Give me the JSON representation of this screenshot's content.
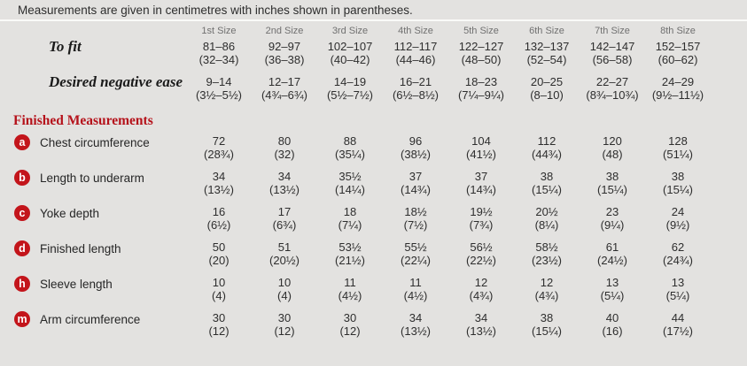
{
  "note": "Measurements are given in centimetres with inches shown in parentheses.",
  "colors": {
    "background": "#e3e2e0",
    "badge_red": "#c3151b",
    "section_title_red": "#b5121b",
    "header_gray": "#707070",
    "text": "#2e2e2e",
    "divider": "#fafaf8"
  },
  "table": {
    "size_headers": [
      "1st Size",
      "2nd Size",
      "3rd Size",
      "4th Size",
      "5th Size",
      "6th Size",
      "7th Size",
      "8th Size"
    ],
    "fit_rows": [
      {
        "label": "To fit",
        "cm": [
          "81–86",
          "92–97",
          "102–107",
          "112–117",
          "122–127",
          "132–137",
          "142–147",
          "152–157"
        ],
        "in": [
          "(32–34)",
          "(36–38)",
          "(40–42)",
          "(44–46)",
          "(48–50)",
          "(52–54)",
          "(56–58)",
          "(60–62)"
        ]
      },
      {
        "label": "Desired negative ease",
        "cm": [
          "9–14",
          "12–17",
          "14–19",
          "16–21",
          "18–23",
          "20–25",
          "22–27",
          "24–29"
        ],
        "in": [
          "(3½–5½)",
          "(4¾–6¾)",
          "(5½–7½)",
          "(6½–8½)",
          "(7¼–9¼)",
          "(8–10)",
          "(8¾–10¾)",
          "(9½–11½)"
        ]
      }
    ],
    "section_title": "Finished Measurements",
    "measurement_rows": [
      {
        "key": "a",
        "label": "Chest circumference",
        "cm": [
          "72",
          "80",
          "88",
          "96",
          "104",
          "112",
          "120",
          "128"
        ],
        "in": [
          "(28¾)",
          "(32)",
          "(35¼)",
          "(38½)",
          "(41½)",
          "(44¾)",
          "(48)",
          "(51¼)"
        ]
      },
      {
        "key": "b",
        "label": "Length to underarm",
        "cm": [
          "34",
          "34",
          "35½",
          "37",
          "37",
          "38",
          "38",
          "38"
        ],
        "in": [
          "(13½)",
          "(13½)",
          "(14¼)",
          "(14¾)",
          "(14¾)",
          "(15¼)",
          "(15¼)",
          "(15¼)"
        ]
      },
      {
        "key": "c",
        "label": "Yoke depth",
        "cm": [
          "16",
          "17",
          "18",
          "18½",
          "19½",
          "20½",
          "23",
          "24"
        ],
        "in": [
          "(6½)",
          "(6¾)",
          "(7¼)",
          "(7½)",
          "(7¾)",
          "(8¼)",
          "(9¼)",
          "(9½)"
        ]
      },
      {
        "key": "d",
        "label": "Finished length",
        "cm": [
          "50",
          "51",
          "53½",
          "55½",
          "56½",
          "58½",
          "61",
          "62"
        ],
        "in": [
          "(20)",
          "(20½)",
          "(21½)",
          "(22¼)",
          "(22½)",
          "(23½)",
          "(24½)",
          "(24¾)"
        ]
      },
      {
        "key": "h",
        "label": "Sleeve length",
        "cm": [
          "10",
          "10",
          "11",
          "11",
          "12",
          "12",
          "13",
          "13"
        ],
        "in": [
          "(4)",
          "(4)",
          "(4½)",
          "(4½)",
          "(4¾)",
          "(4¾)",
          "(5¼)",
          "(5¼)"
        ]
      },
      {
        "key": "m",
        "label": "Arm circumference",
        "cm": [
          "30",
          "30",
          "30",
          "34",
          "34",
          "38",
          "40",
          "44"
        ],
        "in": [
          "(12)",
          "(12)",
          "(12)",
          "(13½)",
          "(13½)",
          "(15¼)",
          "(16)",
          "(17½)"
        ]
      }
    ]
  }
}
